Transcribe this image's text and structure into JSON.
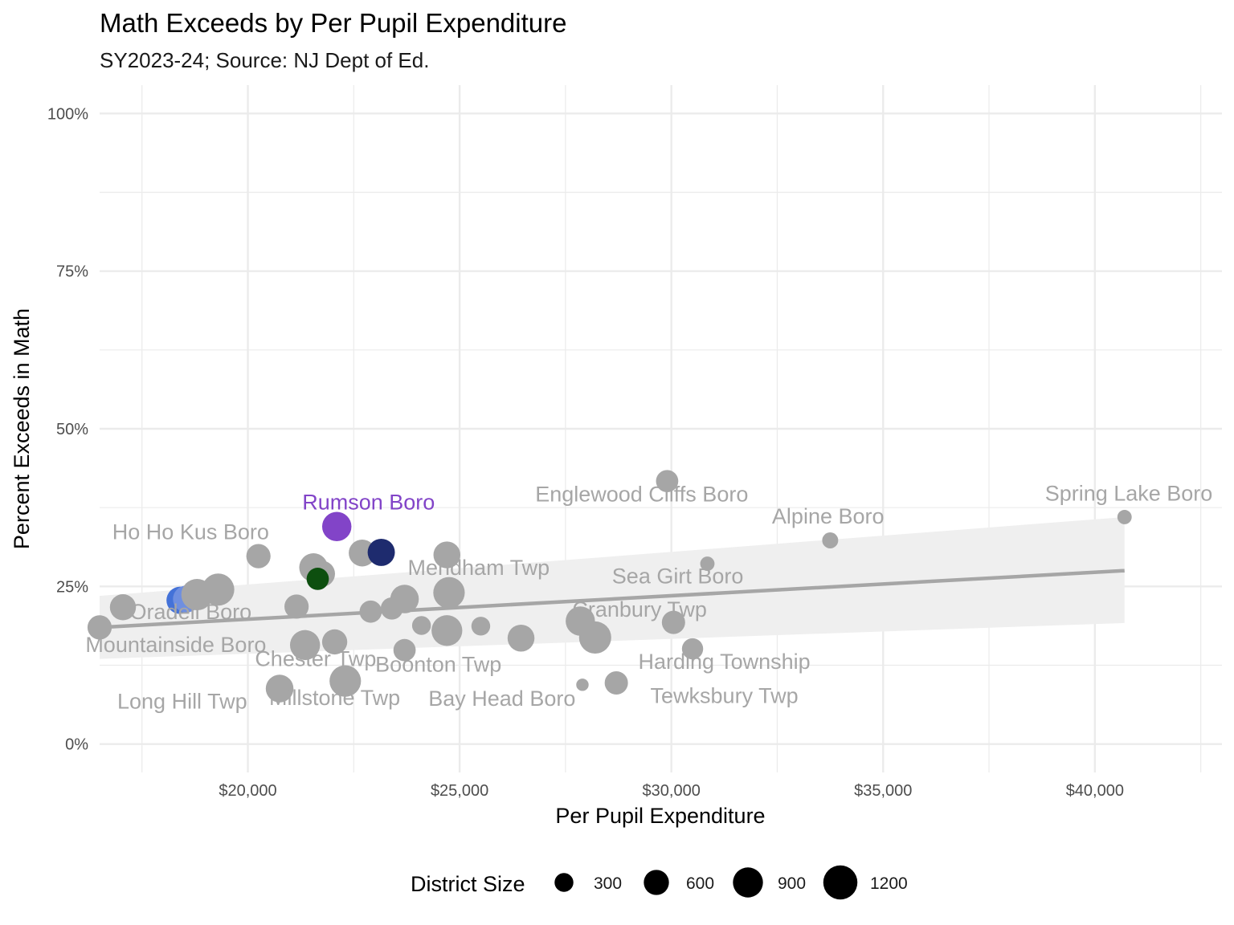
{
  "chart_data": {
    "type": "scatter",
    "title": "Math Exceeds by Per Pupil Expenditure",
    "subtitle": "SY2023-24; Source: NJ Dept of Ed.",
    "xlabel": "Per Pupil Expenditure",
    "ylabel": "Percent Exceeds in Math",
    "xlim": [
      16500,
      43000
    ],
    "ylim": [
      -0.045,
      1.045
    ],
    "x_ticks": [
      20000,
      25000,
      30000,
      35000,
      40000
    ],
    "x_tick_labels": [
      "$20,000",
      "$25,000",
      "$30,000",
      "$35,000",
      "$40,000"
    ],
    "y_ticks": [
      0,
      0.25,
      0.5,
      0.75,
      1.0
    ],
    "y_tick_labels": [
      "0%",
      "25%",
      "50%",
      "75%",
      "100%"
    ],
    "grid": true,
    "colors": {
      "default_point": "#a6a6a6",
      "label_gray": "#a6a6a6",
      "trend_line": "#a6a6a6",
      "ribbon": "#efefef",
      "rumson": "#8244c8",
      "navy": "#1e2b6e",
      "dark_green": "#0d4f0f",
      "royal_blue": "#4472d8",
      "light_blue": "#6f8fe0",
      "grid": "#ebebeb"
    },
    "trend": {
      "x": [
        16500,
        40700
      ],
      "y": [
        0.185,
        0.275
      ],
      "ci_lower": [
        0.135,
        0.192
      ],
      "ci_upper": [
        0.235,
        0.36
      ]
    },
    "size_legend": {
      "title": "District Size",
      "values": [
        300,
        600,
        900,
        1200
      ],
      "labels": [
        "300",
        "600",
        "900",
        "1200"
      ]
    },
    "points": [
      {
        "x": 16500,
        "y": 0.185,
        "size": 550,
        "color": "#a6a6a6"
      },
      {
        "x": 17050,
        "y": 0.217,
        "size": 650,
        "color": "#a6a6a6"
      },
      {
        "x": 18400,
        "y": 0.228,
        "size": 720,
        "color": "#4472d8"
      },
      {
        "x": 18550,
        "y": 0.23,
        "size": 700,
        "color": "#6f8fe0"
      },
      {
        "x": 18800,
        "y": 0.237,
        "size": 1000,
        "color": "#a6a6a6"
      },
      {
        "x": 19300,
        "y": 0.245,
        "size": 1050,
        "color": "#a6a6a6"
      },
      {
        "x": 20250,
        "y": 0.298,
        "size": 550,
        "color": "#a6a6a6"
      },
      {
        "x": 20750,
        "y": 0.088,
        "size": 750,
        "color": "#a6a6a6"
      },
      {
        "x": 21150,
        "y": 0.218,
        "size": 550,
        "color": "#a6a6a6"
      },
      {
        "x": 21350,
        "y": 0.157,
        "size": 900,
        "color": "#a6a6a6"
      },
      {
        "x": 21550,
        "y": 0.28,
        "size": 800,
        "color": "#a6a6a6"
      },
      {
        "x": 21750,
        "y": 0.27,
        "size": 650,
        "color": "#a6a6a6"
      },
      {
        "x": 21650,
        "y": 0.262,
        "size": 450,
        "color": "#0d4f0f"
      },
      {
        "x": 22050,
        "y": 0.162,
        "size": 600,
        "color": "#a6a6a6"
      },
      {
        "x": 22300,
        "y": 0.1,
        "size": 1000,
        "color": "#a6a6a6"
      },
      {
        "x": 22100,
        "y": 0.345,
        "size": 850,
        "color": "#8244c8"
      },
      {
        "x": 22700,
        "y": 0.303,
        "size": 700,
        "color": "#a6a6a6"
      },
      {
        "x": 22900,
        "y": 0.21,
        "size": 450,
        "color": "#a6a6a6"
      },
      {
        "x": 23150,
        "y": 0.304,
        "size": 720,
        "color": "#1e2b6e"
      },
      {
        "x": 23400,
        "y": 0.215,
        "size": 450,
        "color": "#a6a6a6"
      },
      {
        "x": 23700,
        "y": 0.23,
        "size": 800,
        "color": "#a6a6a6"
      },
      {
        "x": 23700,
        "y": 0.149,
        "size": 450,
        "color": "#a6a6a6"
      },
      {
        "x": 24100,
        "y": 0.188,
        "size": 300,
        "color": "#a6a6a6"
      },
      {
        "x": 24700,
        "y": 0.3,
        "size": 700,
        "color": "#a6a6a6"
      },
      {
        "x": 24750,
        "y": 0.24,
        "size": 1000,
        "color": "#a6a6a6"
      },
      {
        "x": 24700,
        "y": 0.18,
        "size": 950,
        "color": "#a6a6a6"
      },
      {
        "x": 25500,
        "y": 0.187,
        "size": 300,
        "color": "#a6a6a6"
      },
      {
        "x": 26450,
        "y": 0.168,
        "size": 700,
        "color": "#a6a6a6"
      },
      {
        "x": 27850,
        "y": 0.195,
        "size": 850,
        "color": "#a6a6a6"
      },
      {
        "x": 27900,
        "y": 0.094,
        "size": 100,
        "color": "#a6a6a6"
      },
      {
        "x": 28200,
        "y": 0.169,
        "size": 1050,
        "color": "#a6a6a6"
      },
      {
        "x": 28700,
        "y": 0.097,
        "size": 500,
        "color": "#a6a6a6"
      },
      {
        "x": 29900,
        "y": 0.417,
        "size": 450,
        "color": "#a6a6a6"
      },
      {
        "x": 30050,
        "y": 0.193,
        "size": 500,
        "color": "#a6a6a6"
      },
      {
        "x": 30500,
        "y": 0.151,
        "size": 400,
        "color": "#a6a6a6"
      },
      {
        "x": 30850,
        "y": 0.286,
        "size": 150,
        "color": "#a6a6a6"
      },
      {
        "x": 33750,
        "y": 0.323,
        "size": 200,
        "color": "#a6a6a6"
      },
      {
        "x": 40700,
        "y": 0.36,
        "size": 150,
        "color": "#a6a6a6"
      }
    ],
    "annotations": [
      {
        "text": "Rumson Boro",
        "x": 22850,
        "y": 0.372,
        "color": "#8244c8"
      },
      {
        "text": "Ho Ho Kus Boro",
        "x": 18650,
        "y": 0.325,
        "color": "#a6a6a6"
      },
      {
        "text": "Oradell Boro",
        "x": 18650,
        "y": 0.198,
        "color": "#a6a6a6"
      },
      {
        "text": "Mountainside Boro",
        "x": 18300,
        "y": 0.146,
        "color": "#a6a6a6"
      },
      {
        "text": "Chester Twp",
        "x": 21600,
        "y": 0.124,
        "color": "#a6a6a6"
      },
      {
        "text": "Long Hill Twp",
        "x": 18450,
        "y": 0.056,
        "color": "#a6a6a6"
      },
      {
        "text": "Millstone Twp",
        "x": 22050,
        "y": 0.062,
        "color": "#a6a6a6"
      },
      {
        "text": "Boonton Twp",
        "x": 24500,
        "y": 0.115,
        "color": "#a6a6a6"
      },
      {
        "text": "Bay Head Boro",
        "x": 26000,
        "y": 0.061,
        "color": "#a6a6a6"
      },
      {
        "text": "Mendham Twp",
        "x": 25450,
        "y": 0.268,
        "color": "#a6a6a6"
      },
      {
        "text": "Englewood Cliffs Boro",
        "x": 29300,
        "y": 0.385,
        "color": "#a6a6a6"
      },
      {
        "text": "Alpine Boro",
        "x": 33700,
        "y": 0.35,
        "color": "#a6a6a6"
      },
      {
        "text": "Sea Girt Boro",
        "x": 30150,
        "y": 0.255,
        "color": "#a6a6a6"
      },
      {
        "text": "Cranbury Twp",
        "x": 29250,
        "y": 0.202,
        "color": "#a6a6a6"
      },
      {
        "text": "Harding Township",
        "x": 31250,
        "y": 0.119,
        "color": "#a6a6a6"
      },
      {
        "text": "Tewksbury Twp",
        "x": 31250,
        "y": 0.065,
        "color": "#a6a6a6"
      },
      {
        "text": "Spring Lake Boro",
        "x": 40800,
        "y": 0.386,
        "color": "#a6a6a6"
      }
    ]
  }
}
